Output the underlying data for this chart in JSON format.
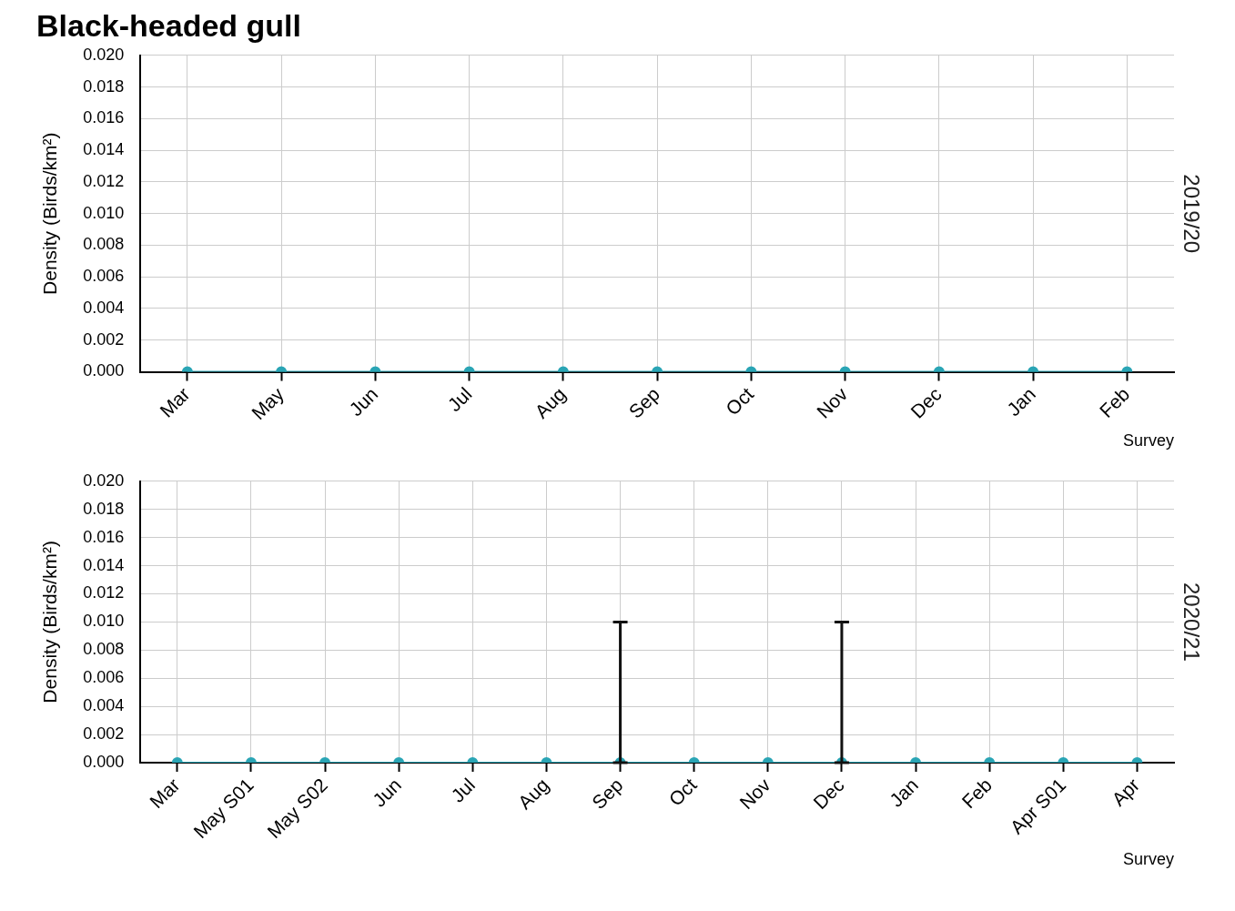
{
  "chart_data": [
    {
      "type": "line",
      "title": "Black-headed gull",
      "xlabel": "Survey",
      "ylabel": "Density (Birds/km²)",
      "annotations": [
        "2019/20"
      ],
      "categories": [
        "Mar",
        "May",
        "Jun",
        "Jul",
        "Aug",
        "Sep",
        "Oct",
        "Nov",
        "Dec",
        "Jan",
        "Feb"
      ],
      "series": [
        {
          "color": "#2aa5b5",
          "values": [
            0,
            0,
            0,
            0,
            0,
            0,
            0,
            0,
            0,
            0,
            0
          ]
        }
      ],
      "ylim": [
        0,
        0.02
      ],
      "yticks": [
        {
          "value": 0,
          "label": "0.000"
        },
        {
          "value": 0.002,
          "label": "0.002"
        },
        {
          "value": 0.004,
          "label": "0.004"
        },
        {
          "value": 0.006,
          "label": "0.006"
        },
        {
          "value": 0.008,
          "label": "0.008"
        },
        {
          "value": 0.01,
          "label": "0.010"
        },
        {
          "value": 0.012,
          "label": "0.012"
        },
        {
          "value": 0.014,
          "label": "0.014"
        },
        {
          "value": 0.016,
          "label": "0.016"
        },
        {
          "value": 0.018,
          "label": "0.018"
        },
        {
          "value": 0.02,
          "label": "0.020"
        }
      ],
      "grid": true,
      "legend": false,
      "marker": "circle",
      "line_style": "solid"
    },
    {
      "type": "line",
      "xlabel": "Survey",
      "ylabel": "Density (Birds/km²)",
      "annotations": [
        "2020/21"
      ],
      "categories": [
        "Mar",
        "May S01",
        "May S02",
        "Jun",
        "Jul",
        "Aug",
        "Sep",
        "Oct",
        "Nov",
        "Dec",
        "Jan",
        "Feb",
        "Apr S01",
        "Apr"
      ],
      "series": [
        {
          "color": "#2aa5b5",
          "values": [
            0,
            0,
            0,
            0,
            0,
            0,
            0,
            0,
            0,
            0,
            0,
            0,
            0,
            0
          ],
          "errors": [
            null,
            null,
            null,
            null,
            null,
            null,
            [
              0,
              0.01
            ],
            null,
            null,
            [
              0,
              0.01
            ],
            null,
            null,
            null,
            null
          ]
        }
      ],
      "ylim": [
        0,
        0.02
      ],
      "yticks": [
        {
          "value": 0,
          "label": "0.000"
        },
        {
          "value": 0.002,
          "label": "0.002"
        },
        {
          "value": 0.004,
          "label": "0.004"
        },
        {
          "value": 0.006,
          "label": "0.006"
        },
        {
          "value": 0.008,
          "label": "0.008"
        },
        {
          "value": 0.01,
          "label": "0.010"
        },
        {
          "value": 0.012,
          "label": "0.012"
        },
        {
          "value": 0.014,
          "label": "0.014"
        },
        {
          "value": 0.016,
          "label": "0.016"
        },
        {
          "value": 0.018,
          "label": "0.018"
        },
        {
          "value": 0.02,
          "label": "0.020"
        }
      ],
      "grid": true,
      "legend": false,
      "marker": "circle",
      "line_style": "solid"
    }
  ]
}
